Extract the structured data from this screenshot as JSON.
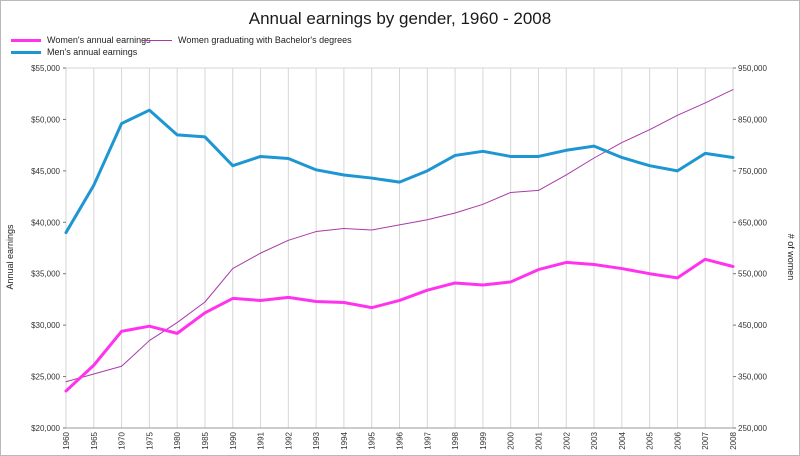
{
  "chart_data": {
    "type": "line",
    "title": "Annual earnings by gender, 1960 - 2008",
    "categories": [
      "1960",
      "1965",
      "1970",
      "1975",
      "1980",
      "1985",
      "1990",
      "1991",
      "1992",
      "1993",
      "1994",
      "1995",
      "1996",
      "1997",
      "1998",
      "1999",
      "2000",
      "2001",
      "2002",
      "2003",
      "2004",
      "2005",
      "2006",
      "2007",
      "2008"
    ],
    "ylabel": "Annual earnings",
    "y2label": "# of women",
    "ylim": [
      20000,
      55000
    ],
    "y2lim": [
      250000,
      950000
    ],
    "yticks": [
      "$20,000",
      "$25,000",
      "$30,000",
      "$35,000",
      "$40,000",
      "$45,000",
      "$50,000",
      "$55,000"
    ],
    "y2ticks": [
      "250,000",
      "350,000",
      "450,000",
      "550,000",
      "650,000",
      "750,000",
      "850,000",
      "950,000"
    ],
    "grid": "vertical",
    "legend_position": "top-left",
    "series": [
      {
        "name": "Women's annual earnings",
        "axis": "left",
        "color": "#ff33ee",
        "width": "thick",
        "values": [
          23600,
          26100,
          29400,
          29900,
          29200,
          31200,
          32600,
          32400,
          32700,
          32300,
          32200,
          31700,
          32400,
          33400,
          34100,
          33900,
          34200,
          35400,
          36100,
          35900,
          35500,
          35000,
          34600,
          36400,
          35700
        ]
      },
      {
        "name": "Men's annual earnings",
        "axis": "left",
        "color": "#1e96d2",
        "width": "thick",
        "values": [
          39000,
          43600,
          49600,
          50900,
          48500,
          48300,
          45500,
          46400,
          46200,
          45100,
          44600,
          44300,
          43900,
          45000,
          46500,
          46900,
          46400,
          46400,
          47000,
          47400,
          46300,
          45500,
          45000,
          46700,
          46300
        ]
      },
      {
        "name": "Women graduating with Bachelor's degrees",
        "axis": "right",
        "color": "#a83aa8",
        "width": "thin",
        "values": [
          340000,
          355000,
          370000,
          420000,
          455000,
          495000,
          560000,
          590000,
          615000,
          632000,
          638000,
          635000,
          645000,
          655000,
          668000,
          685000,
          708000,
          712000,
          742000,
          775000,
          805000,
          830000,
          858000,
          882000,
          908000
        ]
      }
    ]
  }
}
